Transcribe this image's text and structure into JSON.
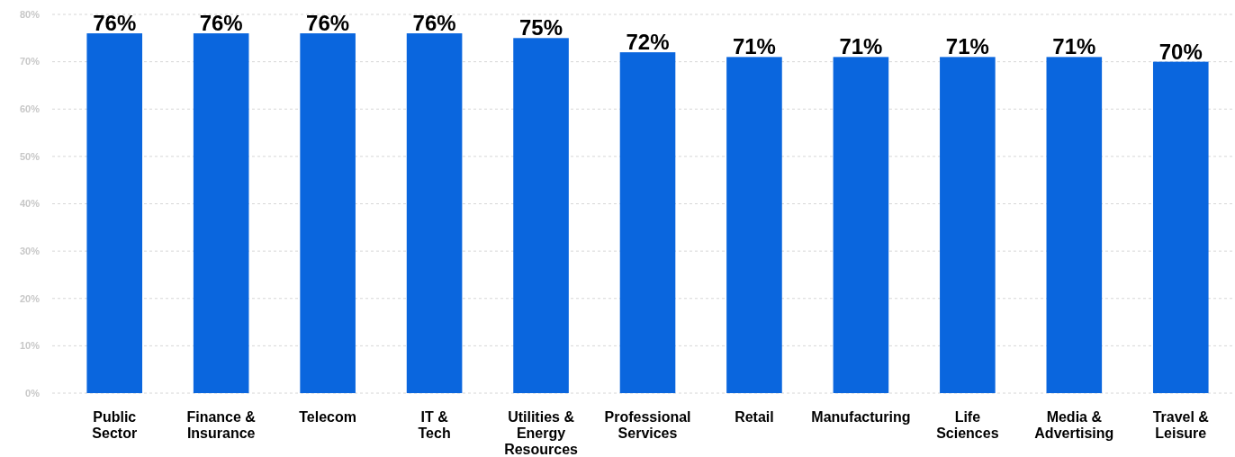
{
  "chart_data": {
    "type": "bar",
    "categories": [
      "Public Sector",
      "Finance & Insurance",
      "Telecom",
      "IT & Tech",
      "Utilities & Energy Resources",
      "Professional Services",
      "Retail",
      "Manufacturing",
      "Life Sciences",
      "Media & Advertising",
      "Travel & Leisure"
    ],
    "values": [
      76,
      76,
      76,
      76,
      75,
      72,
      71,
      71,
      71,
      71,
      70
    ],
    "value_labels": [
      "76%",
      "76%",
      "76%",
      "76%",
      "75%",
      "72%",
      "71%",
      "71%",
      "71%",
      "71%",
      "70%"
    ],
    "color": "#0a66de",
    "ylim": [
      0,
      80
    ],
    "yticks": [
      {
        "value": 0,
        "label": "0%"
      },
      {
        "value": 10,
        "label": "10%"
      },
      {
        "value": 20,
        "label": "20%"
      },
      {
        "value": 30,
        "label": "30%"
      },
      {
        "value": 40,
        "label": "40%"
      },
      {
        "value": 50,
        "label": "50%"
      },
      {
        "value": 60,
        "label": "60%"
      },
      {
        "value": 70,
        "label": "70%"
      },
      {
        "value": 80,
        "label": "80%"
      }
    ],
    "grid": "y"
  }
}
